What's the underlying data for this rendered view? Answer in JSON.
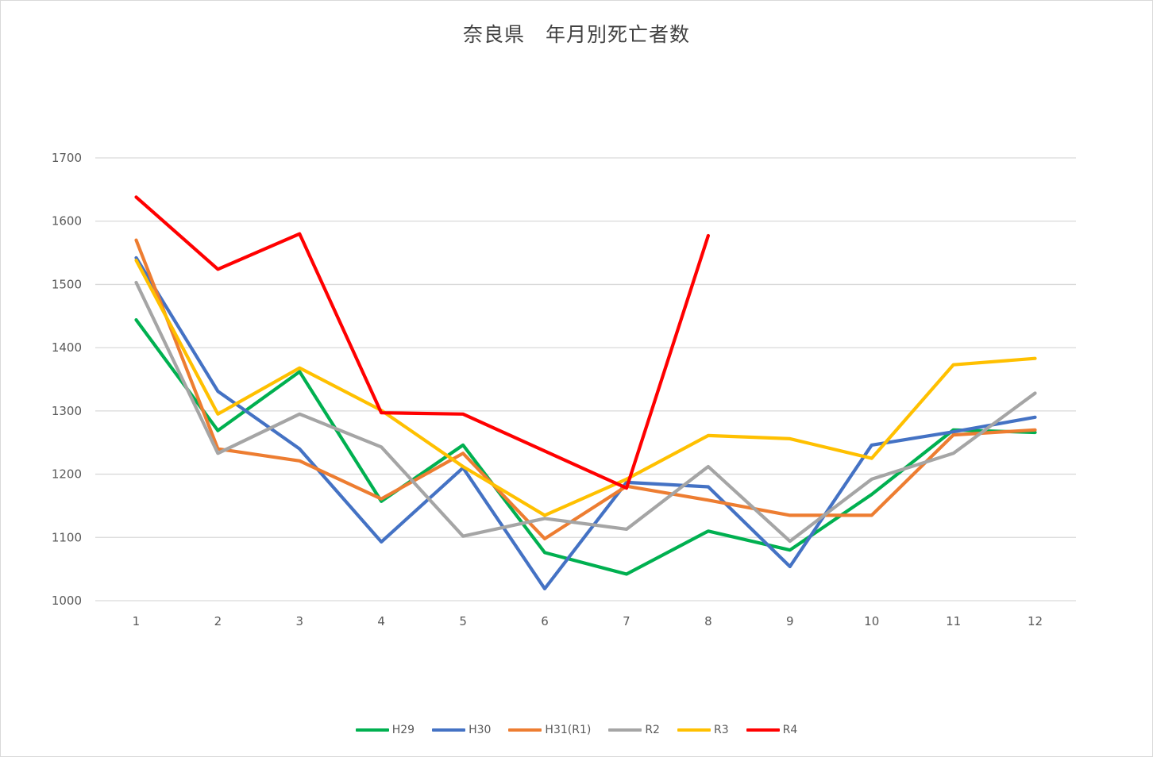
{
  "chart_data": {
    "type": "line",
    "title": "奈良県　年月別死亡者数",
    "xlabel": "",
    "ylabel": "",
    "x": [
      1,
      2,
      3,
      4,
      5,
      6,
      7,
      8,
      9,
      10,
      11,
      12
    ],
    "ylim": [
      1000,
      1700
    ],
    "yticks": [
      1000,
      1100,
      1200,
      1300,
      1400,
      1500,
      1600,
      1700
    ],
    "grid": true,
    "legend": "bottom",
    "series": [
      {
        "name": "H29",
        "color": "#00b050",
        "values": [
          1444,
          1269,
          1362,
          1157,
          1246,
          1076,
          1042,
          1110,
          1080,
          1168,
          1270,
          1266
        ]
      },
      {
        "name": "H30",
        "color": "#4472c4",
        "values": [
          1542,
          1331,
          1240,
          1093,
          1210,
          1019,
          1187,
          1180,
          1054,
          1246,
          1267,
          1290
        ]
      },
      {
        "name": "H31(R1)",
        "color": "#ed7d31",
        "values": [
          1570,
          1240,
          1221,
          1161,
          1233,
          1098,
          1181,
          1159,
          1135,
          1135,
          1262,
          1270
        ]
      },
      {
        "name": "R2",
        "color": "#a5a5a5",
        "values": [
          1503,
          1233,
          1295,
          1243,
          1102,
          1130,
          1113,
          1212,
          1094,
          1192,
          1233,
          1328
        ]
      },
      {
        "name": "R3",
        "color": "#ffc000",
        "values": [
          1538,
          1295,
          1368,
          1301,
          1212,
          1135,
          1192,
          1261,
          1256,
          1225,
          1373,
          1383
        ]
      },
      {
        "name": "R4",
        "color": "#ff0000",
        "values": [
          1638,
          1524,
          1580,
          1297,
          1295,
          null,
          1178,
          1577,
          null,
          null,
          null,
          null
        ]
      }
    ]
  }
}
